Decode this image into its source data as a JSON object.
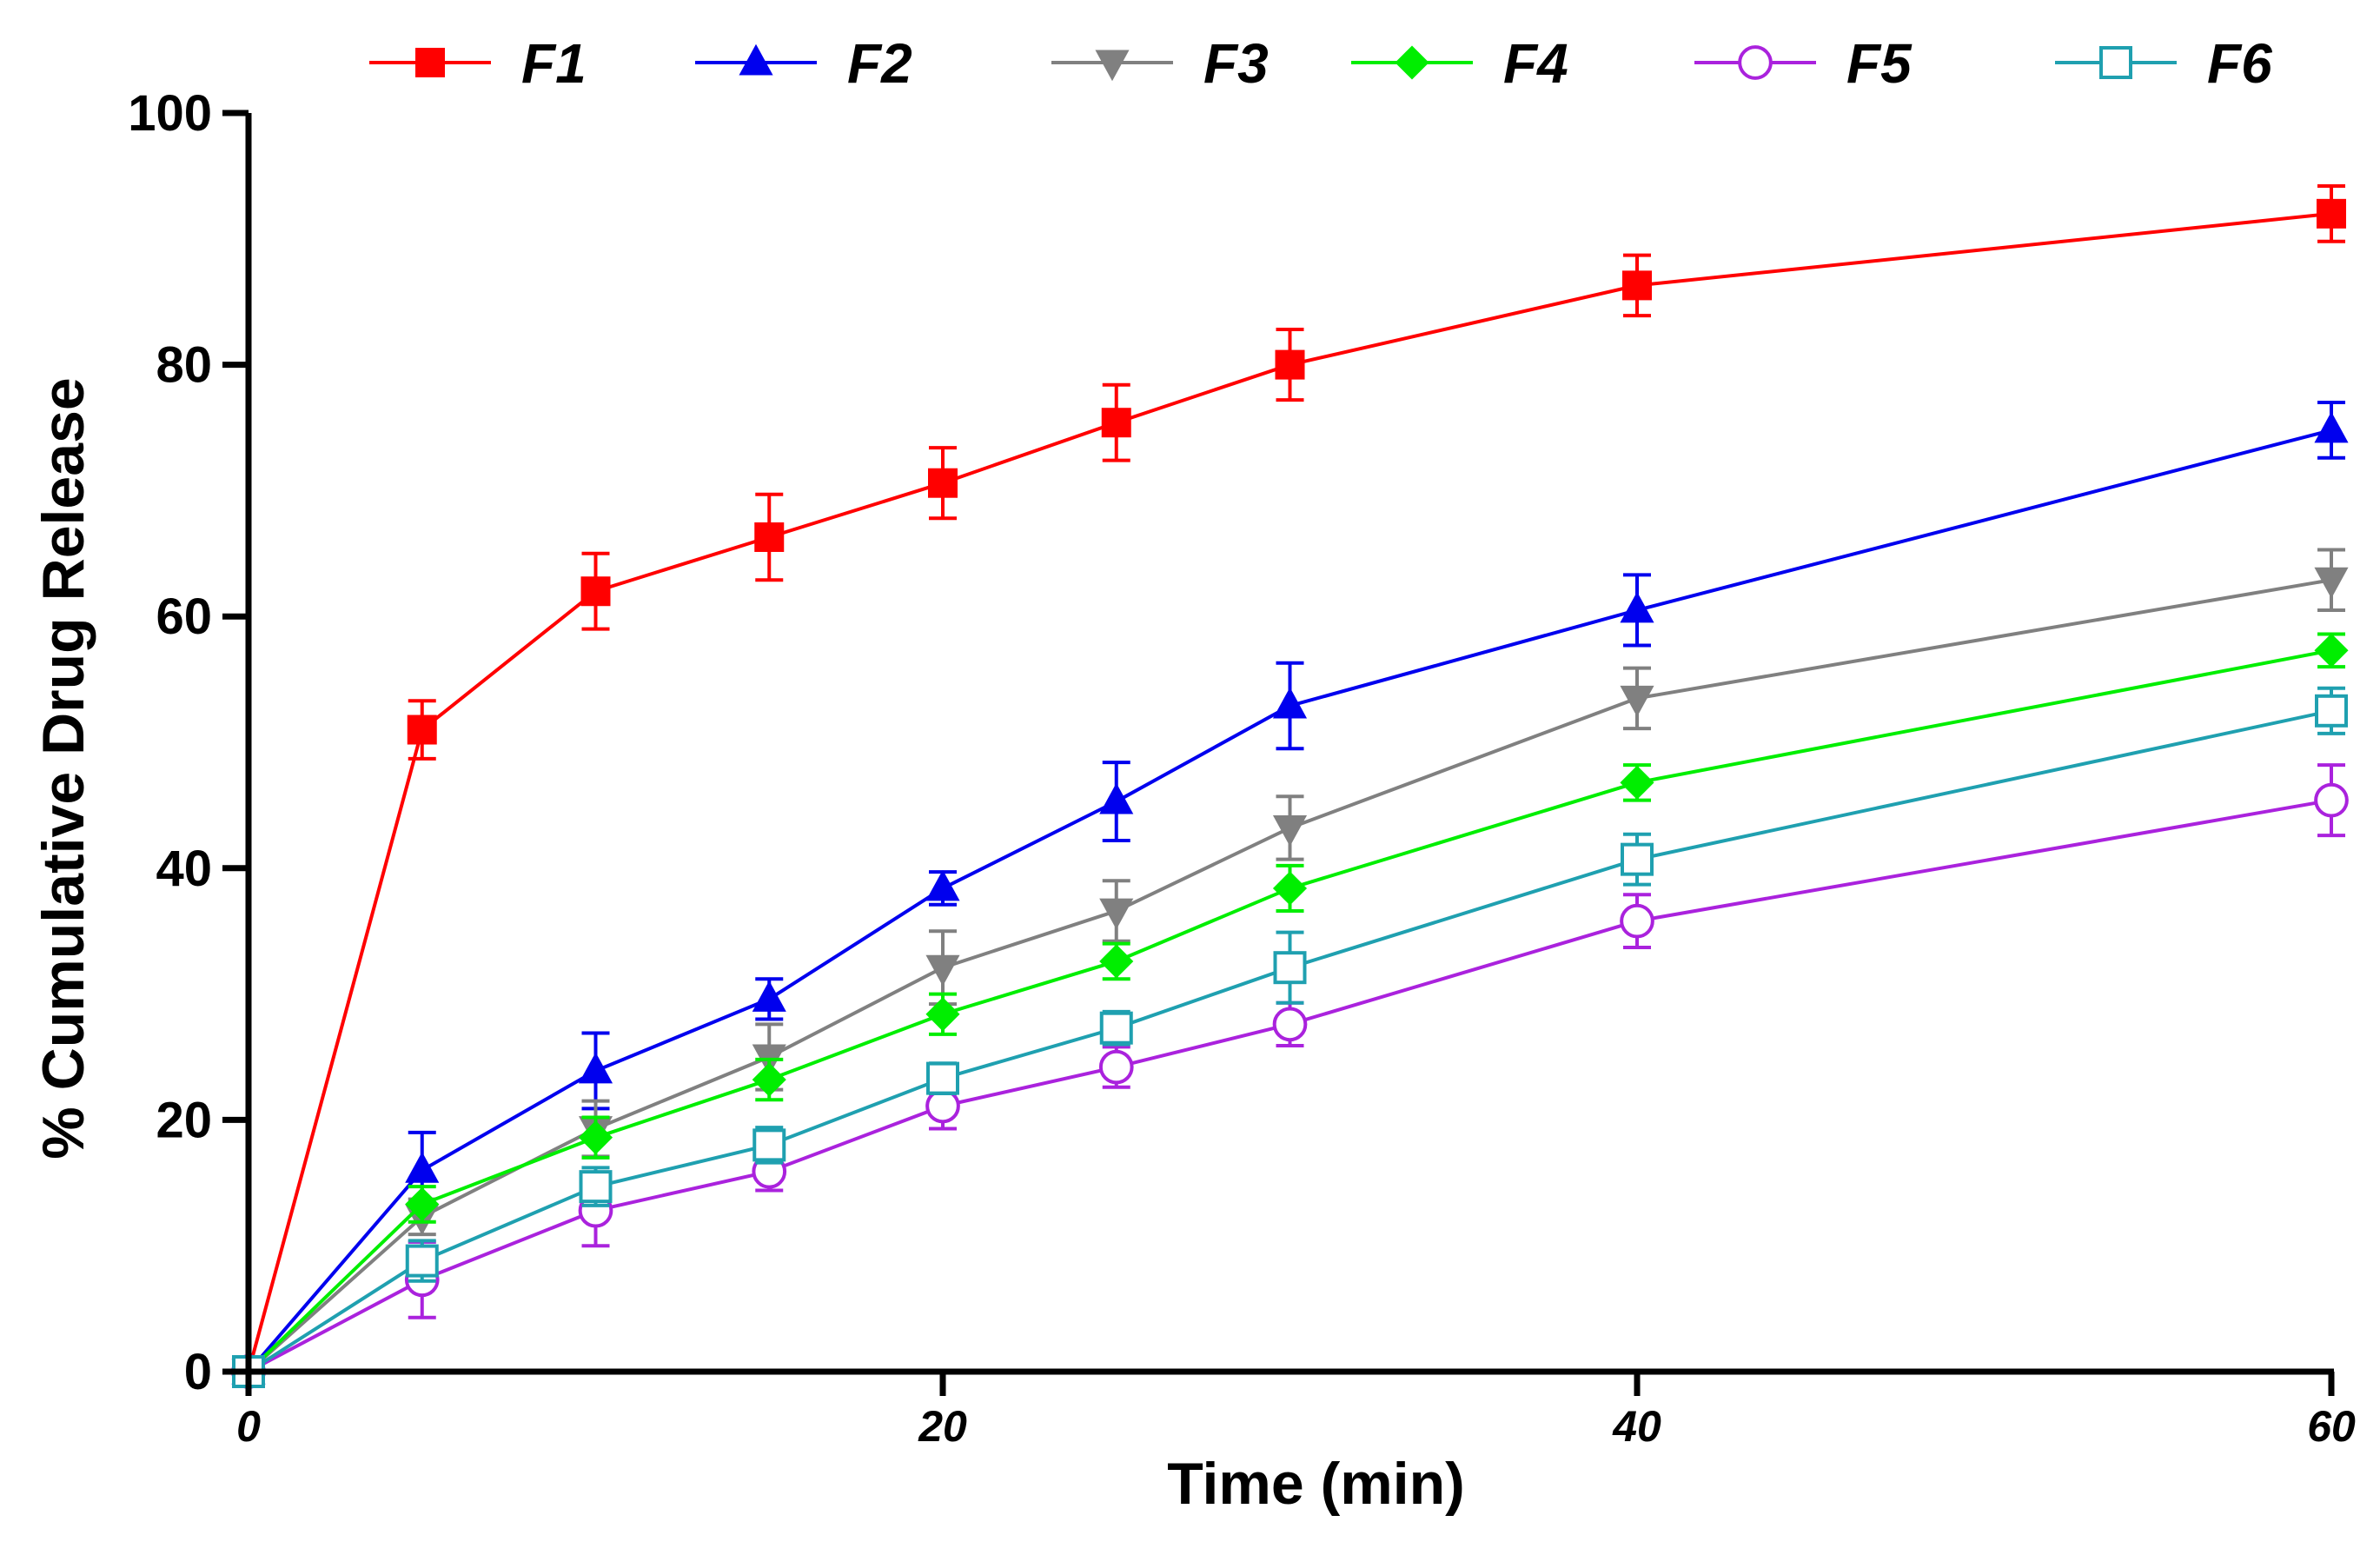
{
  "chart_data": {
    "type": "line",
    "xlabel": "Time (min)",
    "ylabel": "% Cumulative Drug Release",
    "xlim": [
      0,
      60
    ],
    "ylim": [
      0,
      100
    ],
    "xticks": [
      0,
      20,
      40,
      60
    ],
    "yticks": [
      0,
      20,
      40,
      60,
      80,
      100
    ],
    "grid": false,
    "legend_position": "top",
    "x": [
      0,
      5,
      10,
      15,
      20,
      25,
      30,
      40,
      60
    ],
    "series": [
      {
        "name": "F1",
        "color": "#ff0000",
        "marker": "square-filled",
        "values": [
          0,
          51,
          62,
          66.3,
          70.6,
          75.4,
          80,
          86.3,
          92
        ],
        "errors": [
          0,
          2.3,
          3,
          3.4,
          2.8,
          3,
          2.8,
          2.4,
          2.2
        ]
      },
      {
        "name": "F2",
        "color": "#0000ee",
        "marker": "triangle-up-filled",
        "values": [
          0,
          16,
          23.9,
          29.6,
          38.4,
          45.3,
          52.9,
          60.5,
          74.8
        ],
        "errors": [
          0,
          3,
          3,
          1.6,
          1.3,
          3.1,
          3.4,
          2.8,
          2.2
        ]
      },
      {
        "name": "F3",
        "color": "#808080",
        "marker": "triangle-down-filled",
        "values": [
          0,
          12.3,
          19.3,
          25,
          32.1,
          36.6,
          43.2,
          53.5,
          62.9
        ],
        "errors": [
          0,
          1.4,
          2.2,
          2.6,
          2.9,
          2.4,
          2.5,
          2.4,
          2.4
        ]
      },
      {
        "name": "F4",
        "color": "#00ee00",
        "marker": "diamond-filled",
        "values": [
          0,
          13.3,
          18.6,
          23.2,
          28.4,
          32.6,
          38.4,
          46.8,
          57.3
        ],
        "errors": [
          0,
          1.4,
          1.6,
          1.6,
          1.6,
          1.4,
          1.8,
          1.4,
          1.3
        ]
      },
      {
        "name": "F5",
        "color": "#aa22dd",
        "marker": "circle-open",
        "values": [
          0,
          7.3,
          12.8,
          15.9,
          21.1,
          24.2,
          27.6,
          35.8,
          45.4
        ],
        "errors": [
          0,
          3,
          2.8,
          1.5,
          1.8,
          1.6,
          1.7,
          2.1,
          2.8
        ]
      },
      {
        "name": "F6",
        "color": "#1fa0b0",
        "marker": "square-open",
        "values": [
          0,
          8.8,
          14.7,
          18,
          23.3,
          27.3,
          32.1,
          40.7,
          52.5
        ],
        "errors": [
          0,
          1.6,
          1.5,
          1.4,
          1.2,
          1.3,
          2.8,
          2,
          1.8
        ]
      }
    ]
  }
}
